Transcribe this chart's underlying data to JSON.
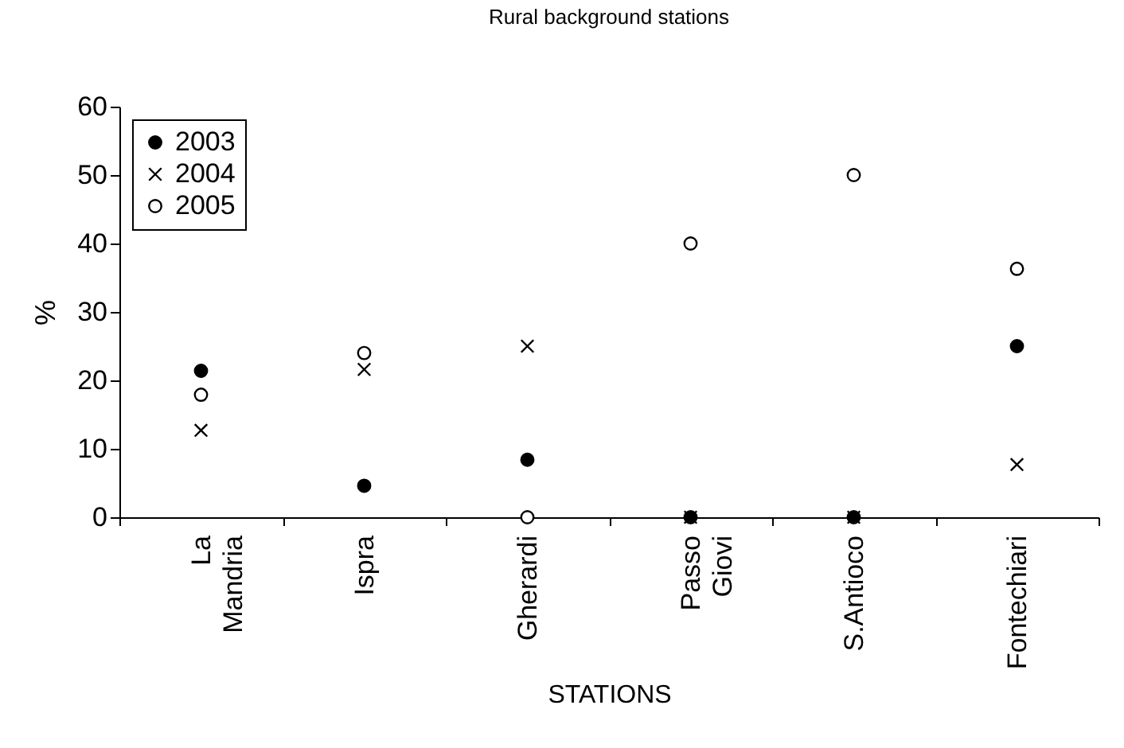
{
  "chart_data": {
    "type": "scatter",
    "title": "Rural background stations",
    "xlabel": "STATIONS",
    "ylabel": "%",
    "categories": [
      "La Mandria",
      "Ispra",
      "Gherardi",
      "Passo Giovi",
      "S.Antioco",
      "Fontechiari"
    ],
    "series": [
      {
        "name": "2003",
        "color": "#000000",
        "marker": "circle",
        "values": [
          21.4,
          4.6,
          8.4,
          0,
          0,
          25
        ]
      },
      {
        "name": "2004",
        "color": "#000000",
        "marker": "cross",
        "values": [
          12.7,
          21.6,
          25,
          0,
          0,
          7.7
        ]
      },
      {
        "name": "2005",
        "color": "#000000",
        "marker": "circle",
        "values": [
          17.9,
          24,
          0,
          40,
          50,
          36.3
        ]
      }
    ],
    "ylim": [
      0,
      60
    ],
    "yticks": [
      0,
      10,
      20,
      30,
      40,
      50,
      60
    ],
    "grid": false,
    "legend": "top left"
  }
}
